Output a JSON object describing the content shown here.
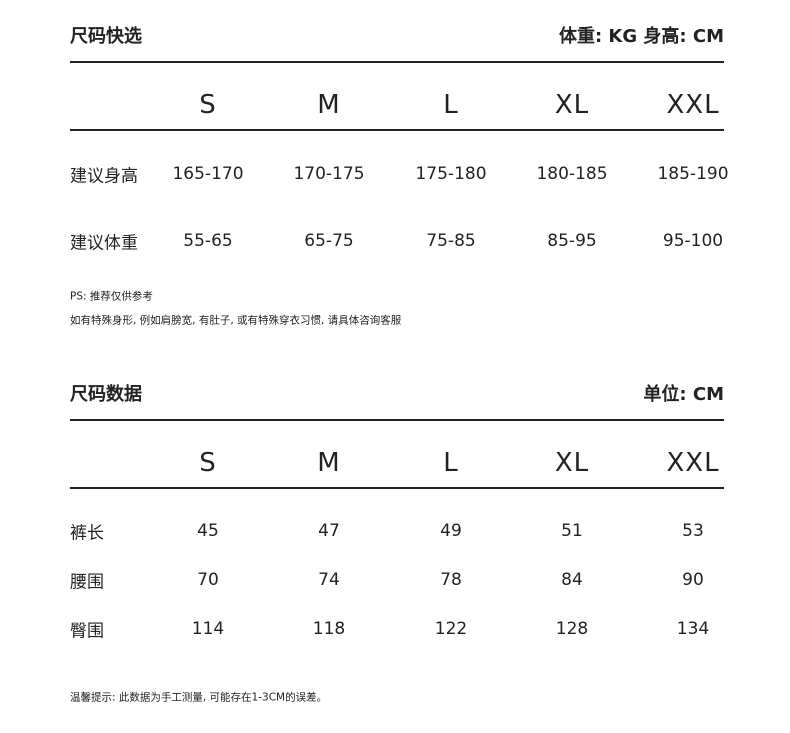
{
  "quick": {
    "title": "尺码快选",
    "unit": "体重:  KG 身高: CM",
    "sizes": [
      "S",
      "M",
      "L",
      "XL",
      "XXL"
    ],
    "rows": [
      {
        "label": "建议身高",
        "values": [
          "165-170",
          "170-175",
          "175-180",
          "180-185",
          "185-190"
        ]
      },
      {
        "label": "建议体重",
        "values": [
          "55-65",
          "65-75",
          "75-85",
          "85-95",
          "95-100"
        ]
      }
    ],
    "note1": "PS: 推荐仅供参考",
    "note2": "如有特殊身形, 例如肩膀宽, 有肚子, 或有特殊穿衣习惯, 请具体咨询客服"
  },
  "data": {
    "title": "尺码数据",
    "unit": "单位: CM",
    "sizes": [
      "S",
      "M",
      "L",
      "XL",
      "XXL"
    ],
    "rows": [
      {
        "label": "裤长",
        "values": [
          "45",
          "47",
          "49",
          "51",
          "53"
        ]
      },
      {
        "label": "腰围",
        "values": [
          "70",
          "74",
          "78",
          "84",
          "90"
        ]
      },
      {
        "label": "臀围",
        "values": [
          "114",
          "118",
          "122",
          "128",
          "134"
        ]
      }
    ],
    "note": "温馨提示: 此数据为手工测量, 可能存在1-3CM的误差。"
  }
}
